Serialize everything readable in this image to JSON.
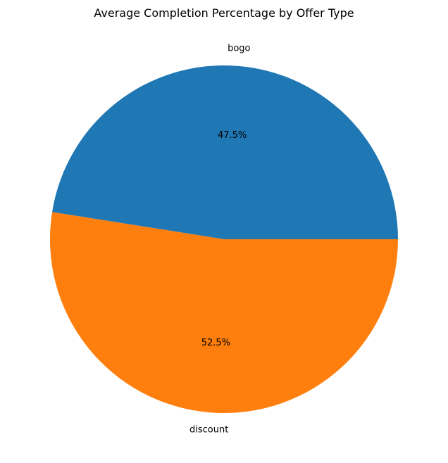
{
  "chart_data": {
    "type": "pie",
    "title": "Average Completion Percentage by Offer Type",
    "categories": [
      "bogo",
      "discount"
    ],
    "values": [
      47.5,
      52.5
    ],
    "value_labels": [
      "47.5%",
      "52.5%"
    ],
    "colors": [
      "#1f77b4",
      "#ff7f0e"
    ],
    "start_angle_deg": 0,
    "direction": "counterclockwise",
    "legend": "none"
  }
}
